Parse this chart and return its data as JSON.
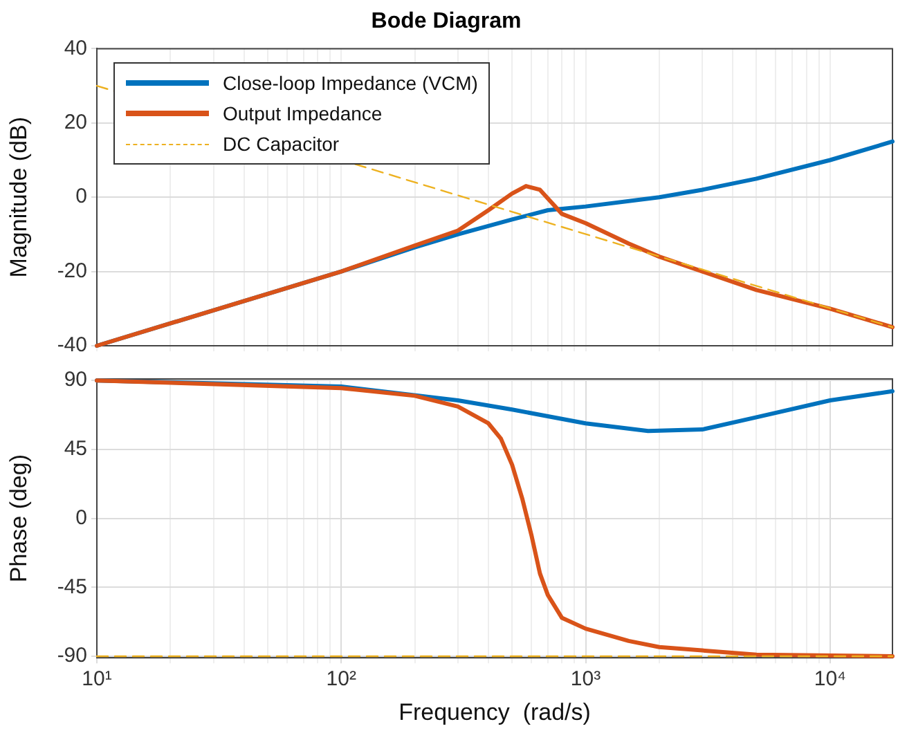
{
  "chart_data": [
    {
      "type": "line",
      "title": "Bode Diagram",
      "ylabel": "Magnitude (dB)",
      "log": "x",
      "grid": true,
      "legend": "top left",
      "tick_labels": "y",
      "marker": "none",
      "xlim": [
        10,
        18000
      ],
      "ylim": [
        -40,
        40
      ],
      "yticks": [
        -40,
        -20,
        0,
        20,
        40
      ],
      "xticks": [
        {
          "value": 10,
          "label": null
        },
        {
          "value": 20,
          "label": null
        },
        {
          "value": 30,
          "label": null
        },
        {
          "value": 40,
          "label": null
        },
        {
          "value": 50,
          "label": null
        },
        {
          "value": 60,
          "label": null
        },
        {
          "value": 70,
          "label": null
        },
        {
          "value": 80,
          "label": null
        },
        {
          "value": 90,
          "label": null
        },
        {
          "value": 100,
          "label": null
        },
        {
          "value": 200,
          "label": null
        },
        {
          "value": 300,
          "label": null
        },
        {
          "value": 400,
          "label": null
        },
        {
          "value": 500,
          "label": null
        },
        {
          "value": 600,
          "label": null
        },
        {
          "value": 700,
          "label": null
        },
        {
          "value": 800,
          "label": null
        },
        {
          "value": 900,
          "label": null
        },
        {
          "value": 1000,
          "label": null
        },
        {
          "value": 2000,
          "label": null
        },
        {
          "value": 3000,
          "label": null
        },
        {
          "value": 4000,
          "label": null
        },
        {
          "value": 5000,
          "label": null
        },
        {
          "value": 6000,
          "label": null
        },
        {
          "value": 7000,
          "label": null
        },
        {
          "value": 8000,
          "label": null
        },
        {
          "value": 9000,
          "label": null
        },
        {
          "value": 10000,
          "label": null
        }
      ],
      "series": [
        {
          "name": "Close-loop Impedance (VCM)",
          "color": "#0072bd",
          "line_style": "solid",
          "x": [
            10,
            100,
            200,
            300,
            500,
            700,
            1000,
            2000,
            3000,
            5000,
            10000,
            18000
          ],
          "values": [
            -40,
            -20,
            -13.5,
            -10,
            -6,
            -3.5,
            -2.5,
            0,
            2,
            5,
            10,
            15
          ]
        },
        {
          "name": "Output Impedance",
          "color": "#d95319",
          "line_style": "solid",
          "x": [
            10,
            100,
            200,
            300,
            400,
            500,
            570,
            650,
            800,
            1000,
            1500,
            2000,
            5000,
            10000,
            18000
          ],
          "values": [
            -40,
            -20,
            -13,
            -9,
            -3.5,
            1,
            3,
            2,
            -4.5,
            -7,
            -12.5,
            -16,
            -25,
            -30,
            -35
          ]
        },
        {
          "name": "DC Capacitor",
          "color": "#edb120",
          "line_style": "dashed",
          "x": [
            10,
            18000
          ],
          "values": [
            30,
            -35
          ]
        }
      ]
    },
    {
      "type": "line",
      "xlabel": "Frequency  (rad/s)",
      "ylabel": "Phase (deg)",
      "log": "x",
      "grid": true,
      "marker": "none",
      "xlim": [
        10,
        18000
      ],
      "ylim": [
        -91,
        91
      ],
      "yticks": [
        -90,
        -45,
        0,
        45,
        90
      ],
      "xticks": [
        {
          "value": 10,
          "label": "10¹"
        },
        {
          "value": 20,
          "label": null
        },
        {
          "value": 30,
          "label": null
        },
        {
          "value": 40,
          "label": null
        },
        {
          "value": 50,
          "label": null
        },
        {
          "value": 60,
          "label": null
        },
        {
          "value": 70,
          "label": null
        },
        {
          "value": 80,
          "label": null
        },
        {
          "value": 90,
          "label": null
        },
        {
          "value": 100,
          "label": "10²"
        },
        {
          "value": 200,
          "label": null
        },
        {
          "value": 300,
          "label": null
        },
        {
          "value": 400,
          "label": null
        },
        {
          "value": 500,
          "label": null
        },
        {
          "value": 600,
          "label": null
        },
        {
          "value": 700,
          "label": null
        },
        {
          "value": 800,
          "label": null
        },
        {
          "value": 900,
          "label": null
        },
        {
          "value": 1000,
          "label": "10³"
        },
        {
          "value": 2000,
          "label": null
        },
        {
          "value": 3000,
          "label": null
        },
        {
          "value": 4000,
          "label": null
        },
        {
          "value": 5000,
          "label": null
        },
        {
          "value": 6000,
          "label": null
        },
        {
          "value": 7000,
          "label": null
        },
        {
          "value": 8000,
          "label": null
        },
        {
          "value": 9000,
          "label": null
        },
        {
          "value": 10000,
          "label": "10⁴"
        }
      ],
      "series": [
        {
          "color": "#0072bd",
          "line_style": "solid",
          "x": [
            10,
            100,
            300,
            500,
            1000,
            1800,
            3000,
            5000,
            10000,
            18000
          ],
          "values": [
            90,
            86,
            77,
            71,
            62,
            57,
            58,
            66,
            77,
            83
          ]
        },
        {
          "color": "#d95319",
          "line_style": "solid",
          "x": [
            10,
            100,
            200,
            300,
            400,
            450,
            500,
            550,
            600,
            650,
            700,
            800,
            1000,
            1500,
            2000,
            5000,
            18000
          ],
          "values": [
            90,
            85,
            80,
            73,
            62,
            52,
            35,
            13,
            -11,
            -36,
            -50,
            -65,
            -72,
            -80,
            -84,
            -89,
            -90
          ]
        },
        {
          "color": "#edb120",
          "line_style": "dashed",
          "x": [
            10,
            18000
          ],
          "values": [
            -90,
            -90
          ]
        }
      ]
    }
  ]
}
